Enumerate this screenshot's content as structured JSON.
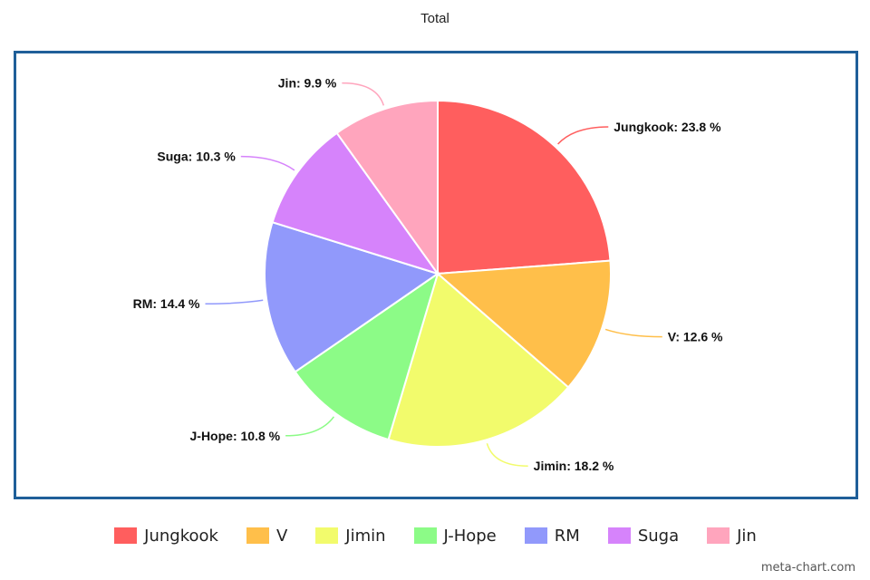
{
  "chart_data": {
    "type": "pie",
    "title": "Total",
    "categories": [
      "Jungkook",
      "V",
      "Jimin",
      "J-Hope",
      "RM",
      "Suga",
      "Jin"
    ],
    "values": [
      23.8,
      12.6,
      18.2,
      10.8,
      14.4,
      10.3,
      9.9
    ],
    "unit": "%",
    "slice_labels": [
      "Jungkook: 23.8 %",
      "V: 12.6 %",
      "Jimin: 18.2 %",
      "J-Hope: 10.8 %",
      "RM: 14.4 %",
      "Suga: 10.3 %",
      "Jin: 9.9 %"
    ],
    "colors": [
      "#ff5e5e",
      "#ffbf4a",
      "#f2fb6c",
      "#8cfb87",
      "#9199fb",
      "#d683fb",
      "#ffa5bd"
    ],
    "start_angle": "12 o'clock",
    "direction": "clockwise",
    "legend": {
      "position": "bottom",
      "entries": [
        "Jungkook",
        "V",
        "Jimin",
        "J-Hope",
        "RM",
        "Suga",
        "Jin"
      ]
    }
  },
  "watermark": "meta-chart.com"
}
